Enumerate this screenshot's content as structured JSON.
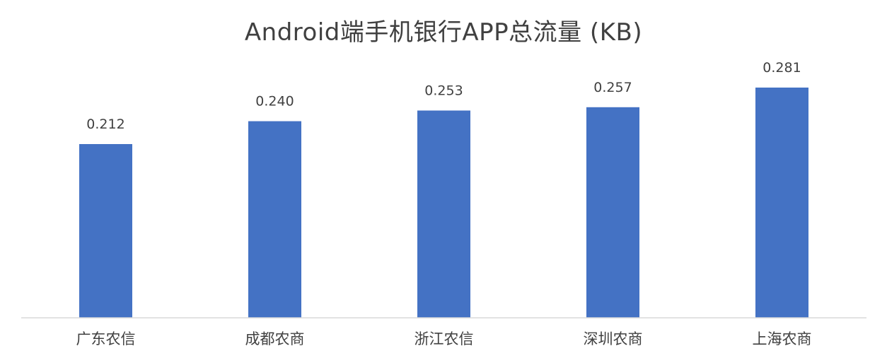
{
  "chart_data": {
    "type": "bar",
    "title": "Android端手机银行APP总流量 (KB)",
    "categories": [
      "广东农信",
      "成都农商",
      "浙江农信",
      "深圳农商",
      "上海农商"
    ],
    "values": [
      0.212,
      0.24,
      0.253,
      0.257,
      0.281
    ],
    "value_labels": [
      "0.212",
      "0.240",
      "0.253",
      "0.257",
      "0.281"
    ],
    "xlabel": "",
    "ylabel": "",
    "ylim": [
      0,
      0.281
    ],
    "grid": false,
    "legend": "none",
    "bar_color": "#4472C4"
  }
}
